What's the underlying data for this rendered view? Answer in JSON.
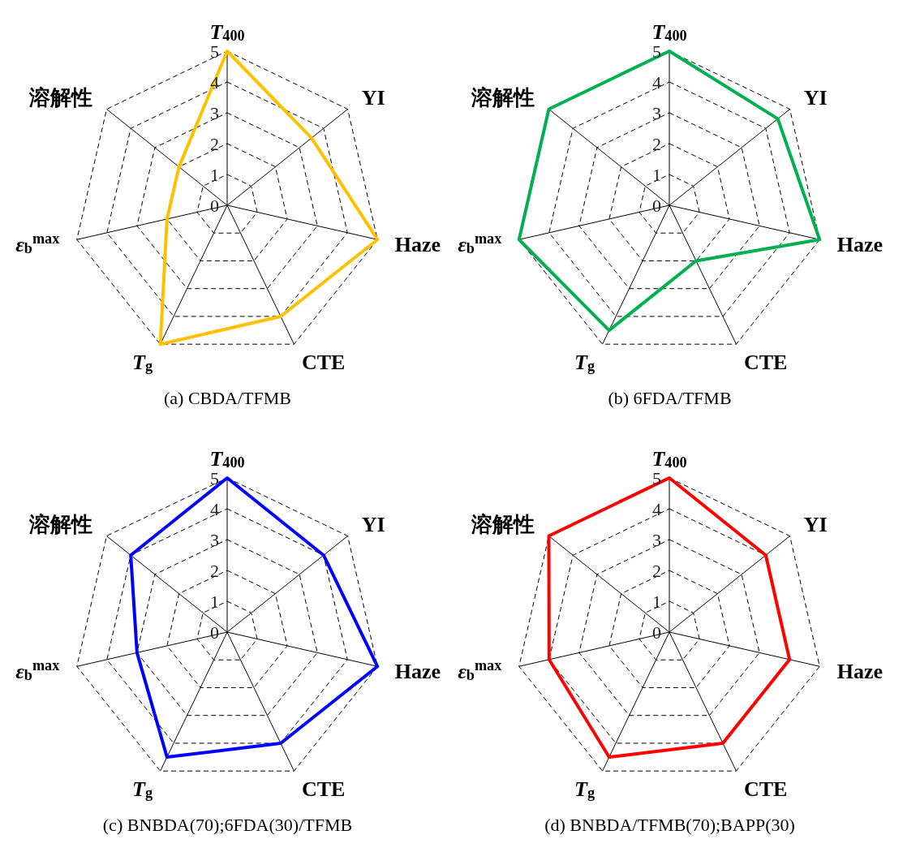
{
  "chart_data": [
    {
      "type": "radar",
      "title": "(a) CBDA/TFMB",
      "categories": [
        "T$_{400}$",
        "YI",
        "Haze",
        "CTE",
        "T$_{g}$",
        "ε$_{b}$$^{max}$",
        "溶解性"
      ],
      "ylim": [
        0,
        5
      ],
      "yticks": [
        0,
        1,
        2,
        3,
        4,
        5
      ],
      "grid": true,
      "line_style": "solid",
      "marker": "none",
      "series": [
        {
          "color": "#ffc000",
          "values": [
            5,
            3.5,
            5,
            4,
            5,
            2,
            2
          ]
        }
      ]
    },
    {
      "type": "radar",
      "title": "(b) 6FDA/TFMB",
      "categories": [
        "T$_{400}$",
        "YI",
        "Haze",
        "CTE",
        "T$_{g}$",
        "ε$_{b}$$^{max}$",
        "溶解性"
      ],
      "ylim": [
        0,
        5
      ],
      "yticks": [
        0,
        1,
        2,
        3,
        4,
        5
      ],
      "grid": true,
      "line_style": "solid",
      "marker": "none",
      "series": [
        {
          "color": "#00b050",
          "values": [
            5,
            4.5,
            5,
            2,
            4.5,
            5,
            5
          ]
        }
      ]
    },
    {
      "type": "radar",
      "title": "(c) BNBDA(70);6FDA(30)/TFMB",
      "categories": [
        "T$_{400}$",
        "YI",
        "Haze",
        "CTE",
        "T$_{g}$",
        "ε$_{b}$$^{max}$",
        "溶解性"
      ],
      "ylim": [
        0,
        5
      ],
      "yticks": [
        0,
        1,
        2,
        3,
        4,
        5
      ],
      "grid": true,
      "line_style": "solid",
      "marker": "none",
      "series": [
        {
          "color": "#0000ff",
          "values": [
            5,
            4,
            5,
            4,
            4.5,
            3,
            4
          ]
        }
      ]
    },
    {
      "type": "radar",
      "title": "(d) BNBDA/TFMB(70);BAPP(30)",
      "categories": [
        "T$_{400}$",
        "YI",
        "Haze",
        "CTE",
        "T$_{g}$",
        "ε$_{b}$$^{max}$",
        "溶解性"
      ],
      "ylim": [
        0,
        5
      ],
      "yticks": [
        0,
        1,
        2,
        3,
        4,
        5
      ],
      "grid": true,
      "line_style": "solid",
      "marker": "none",
      "series": [
        {
          "color": "#ff0000",
          "values": [
            5,
            4,
            4,
            4,
            4.5,
            4,
            5
          ]
        }
      ]
    }
  ]
}
